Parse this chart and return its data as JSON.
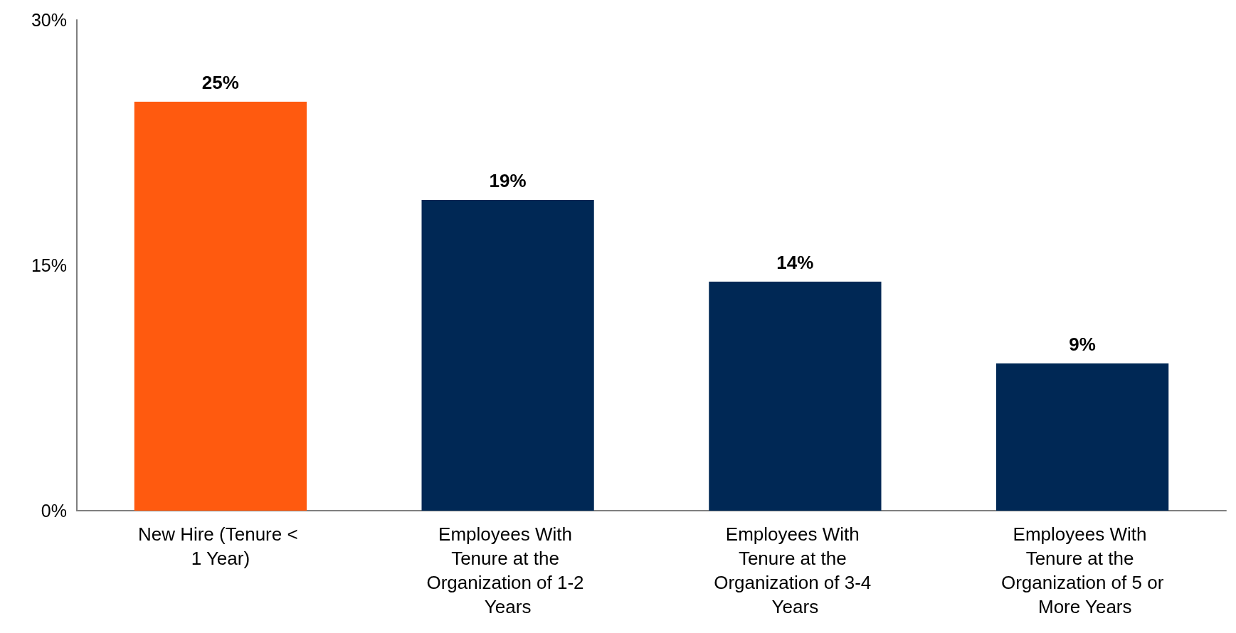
{
  "chart_data": {
    "type": "bar",
    "categories": [
      "New Hire (Tenure < 1 Year)",
      "Employees With Tenure at the Organization of 1-2 Years",
      "Employees With Tenure at the Organization of 3-4 Years",
      "Employees With Tenure at the Organization of 5 or More Years"
    ],
    "values": [
      25,
      19,
      14,
      9
    ],
    "colors": [
      "#ff5a0f",
      "#002855",
      "#002855",
      "#002855"
    ],
    "value_labels": [
      "25%",
      "19%",
      "14%",
      "9%"
    ],
    "ylim": [
      0,
      30
    ],
    "yticks": [
      {
        "value": 0,
        "label": "0%"
      },
      {
        "value": 15,
        "label": "15%"
      },
      {
        "value": 30,
        "label": "30%"
      }
    ],
    "grid": false
  }
}
